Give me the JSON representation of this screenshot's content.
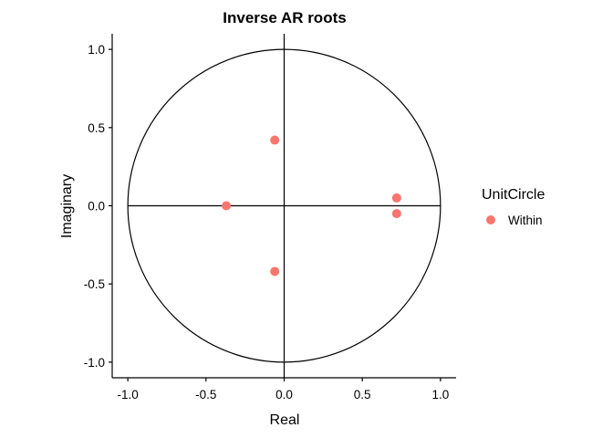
{
  "chart_data": {
    "type": "scatter",
    "title": "Inverse AR roots",
    "xlabel": "Real",
    "ylabel": "Imaginary",
    "xlim": [
      -1.1,
      1.1
    ],
    "ylim": [
      -1.1,
      1.1
    ],
    "x_ticks": [
      -1.0,
      -0.5,
      0.0,
      0.5,
      1.0
    ],
    "y_ticks": [
      -1.0,
      -0.5,
      0.0,
      0.5,
      1.0
    ],
    "x_tick_labels": [
      "-1.0",
      "-0.5",
      "0.0",
      "0.5",
      "1.0"
    ],
    "y_tick_labels": [
      "-1.0",
      "-0.5",
      "0.0",
      "0.5",
      "1.0"
    ],
    "grid": false,
    "unit_circle": true,
    "reference_lines": [
      {
        "axis": "x",
        "value": 0
      },
      {
        "axis": "y",
        "value": 0
      }
    ],
    "legend": {
      "title": "UnitCircle",
      "position": "right",
      "entries": [
        {
          "label": "Within",
          "color": "#F8766D"
        }
      ]
    },
    "series": [
      {
        "name": "Within",
        "color": "#F8766D",
        "points": [
          {
            "x": -0.06,
            "y": 0.42
          },
          {
            "x": -0.06,
            "y": -0.42
          },
          {
            "x": -0.37,
            "y": 0.0
          },
          {
            "x": 0.72,
            "y": 0.05
          },
          {
            "x": 0.72,
            "y": -0.05
          }
        ]
      }
    ]
  }
}
